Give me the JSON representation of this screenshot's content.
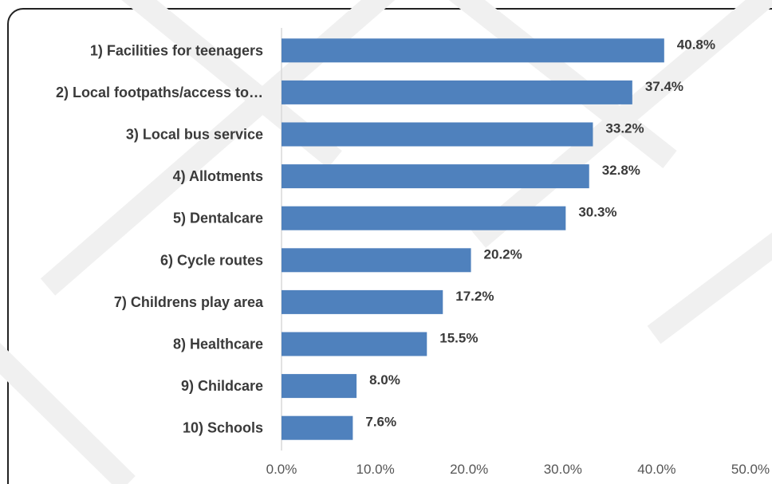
{
  "chart_data": {
    "type": "bar",
    "orientation": "horizontal",
    "categories": [
      "1) Facilities for teenagers",
      "2) Local footpaths/access to…",
      "3) Local bus service",
      "4) Allotments",
      "5) Dentalcare",
      "6) Cycle routes",
      "7) Childrens play area",
      "8) Healthcare",
      "9) Childcare",
      "10) Schools"
    ],
    "values": [
      40.8,
      37.4,
      33.2,
      32.8,
      30.3,
      20.2,
      17.2,
      15.5,
      8.0,
      7.6
    ],
    "value_labels": [
      "40.8%",
      "37.4%",
      "33.2%",
      "32.8%",
      "30.3%",
      "20.2%",
      "17.2%",
      "15.5%",
      "8.0%",
      "7.6%"
    ],
    "x_ticks": [
      "0.0%",
      "10.0%",
      "20.0%",
      "30.0%",
      "40.0%",
      "50.0%"
    ],
    "xlim": [
      0,
      50
    ],
    "grid": false,
    "legend": "none",
    "colors": {
      "bar": "#4f81bd",
      "axis": "#d9d9d9",
      "text": "#3a3a3a"
    }
  }
}
